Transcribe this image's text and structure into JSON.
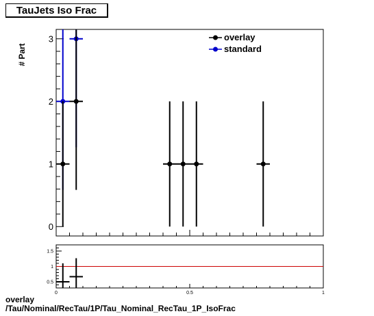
{
  "title": "TauJets Iso Frac",
  "footer": {
    "line1": "overlay",
    "line2": "/Tau/Nominal/RecTau/1P/Tau_Nominal_RecTau_1P_IsoFrac"
  },
  "colors": {
    "overlay": "#000000",
    "standard": "#0000cc",
    "ratio_line": "#cc0000"
  },
  "chart_data": [
    {
      "type": "scatter",
      "title": "TauJets Iso Frac",
      "xlabel": "",
      "ylabel": "# Part",
      "xlim": [
        0,
        1
      ],
      "ylim": [
        -0.15,
        3.15
      ],
      "x_ticks": [
        "0",
        "0.5",
        "1"
      ],
      "y_ticks": [
        "0",
        "1",
        "2",
        "3"
      ],
      "legend_position": "top-right",
      "series": [
        {
          "name": "overlay",
          "x": [
            0.025,
            0.075,
            0.425,
            0.475,
            0.525,
            0.775
          ],
          "y": [
            1,
            2,
            1,
            1,
            1,
            1
          ],
          "yerr": [
            1,
            1.414,
            1,
            1,
            1,
            1
          ],
          "xerr": 0.025
        },
        {
          "name": "standard",
          "x": [
            0.025,
            0.075
          ],
          "y": [
            2,
            3
          ],
          "yerr": [
            1.414,
            1.732
          ],
          "xerr": 0.025
        }
      ]
    },
    {
      "type": "scatter",
      "title": "",
      "xlabel": "",
      "ylabel": "",
      "xlim": [
        0,
        1
      ],
      "ylim": [
        0.3,
        1.7
      ],
      "x_ticks": [
        "0",
        "0.5",
        "1"
      ],
      "y_ticks": [
        "0.5",
        "1",
        "1.5"
      ],
      "reference_line": 1,
      "series": [
        {
          "name": "",
          "x": [
            0.025,
            0.075
          ],
          "y": [
            0.5,
            0.667
          ],
          "yerr": [
            0.6,
            0.6
          ],
          "xerr": 0.025
        }
      ]
    }
  ]
}
